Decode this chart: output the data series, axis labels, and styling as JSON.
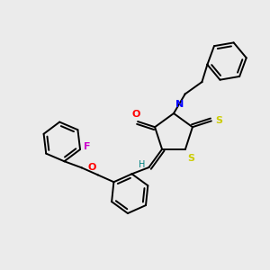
{
  "background_color": "#ebebeb",
  "atom_colors": {
    "S": "#cccc00",
    "N": "#0000ff",
    "O": "#ff0000",
    "F": "#cc00cc",
    "C": "#000000",
    "H": "#008080"
  },
  "figsize": [
    3.0,
    3.0
  ],
  "dpi": 100,
  "lw": 1.4
}
